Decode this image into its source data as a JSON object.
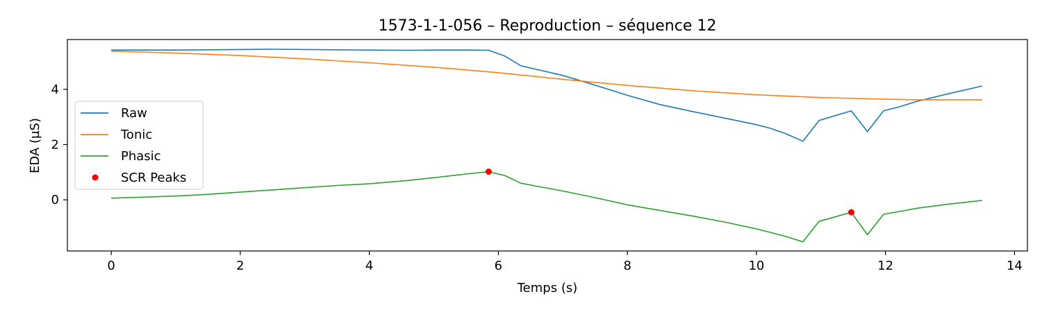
{
  "chart_data": {
    "type": "line",
    "title": "1573-1-1-056 – Reproduction – séquence 12",
    "xlabel": "Temps (s)",
    "ylabel": "EDA (µS)",
    "xlim": [
      -0.68,
      14.2
    ],
    "ylim": [
      -1.85,
      5.8
    ],
    "xticks": [
      0,
      2,
      4,
      6,
      8,
      10,
      12,
      14
    ],
    "yticks": [
      0,
      2,
      4
    ],
    "grid": false,
    "legend_position": "center-left",
    "series": [
      {
        "name": "Raw",
        "color": "#1f77b4",
        "kind": "line",
        "x": [
          0,
          0.5,
          1.0,
          1.5,
          2.0,
          2.5,
          3.0,
          3.5,
          4.0,
          4.6,
          5.0,
          5.6,
          5.85,
          6.1,
          6.35,
          7.0,
          7.5,
          8.0,
          8.5,
          9.0,
          9.5,
          10.0,
          10.2,
          10.45,
          10.72,
          10.97,
          11.47,
          11.72,
          11.97,
          12.22,
          12.5,
          13.0,
          13.5
        ],
        "y": [
          5.42,
          5.42,
          5.42,
          5.43,
          5.44,
          5.45,
          5.44,
          5.43,
          5.42,
          5.41,
          5.42,
          5.42,
          5.41,
          5.2,
          4.85,
          4.5,
          4.15,
          3.78,
          3.45,
          3.2,
          2.96,
          2.72,
          2.6,
          2.4,
          2.12,
          2.87,
          3.22,
          2.47,
          3.22,
          3.37,
          3.57,
          3.85,
          4.12
        ]
      },
      {
        "name": "Tonic",
        "color": "#ff7f0e",
        "kind": "line",
        "x": [
          0,
          1,
          2,
          3,
          4,
          5,
          6,
          7,
          8,
          9,
          10,
          11,
          12,
          12.5,
          13,
          13.5
        ],
        "y": [
          5.38,
          5.31,
          5.22,
          5.1,
          4.96,
          4.8,
          4.6,
          4.36,
          4.14,
          3.95,
          3.8,
          3.7,
          3.64,
          3.62,
          3.62,
          3.62
        ]
      },
      {
        "name": "Phasic",
        "color": "#2ca02c",
        "kind": "line",
        "x": [
          0,
          0.5,
          1.0,
          1.5,
          2.0,
          2.5,
          3.0,
          3.5,
          4.0,
          4.6,
          5.0,
          5.6,
          5.85,
          6.1,
          6.35,
          7.0,
          7.5,
          8.0,
          8.5,
          9.0,
          9.5,
          10.0,
          10.2,
          10.45,
          10.72,
          10.97,
          11.47,
          11.72,
          11.97,
          12.22,
          12.5,
          13.0,
          13.5
        ],
        "y": [
          0.06,
          0.1,
          0.14,
          0.2,
          0.28,
          0.36,
          0.44,
          0.52,
          0.58,
          0.7,
          0.8,
          0.96,
          1.02,
          0.88,
          0.6,
          0.32,
          0.08,
          -0.18,
          -0.38,
          -0.58,
          -0.8,
          -1.05,
          -1.17,
          -1.32,
          -1.52,
          -0.78,
          -0.45,
          -1.26,
          -0.52,
          -0.42,
          -0.3,
          -0.15,
          -0.02
        ]
      },
      {
        "name": "SCR Peaks",
        "color": "#ff0000",
        "kind": "scatter",
        "x": [
          5.85,
          11.47
        ],
        "y": [
          1.02,
          -0.45
        ]
      }
    ]
  }
}
